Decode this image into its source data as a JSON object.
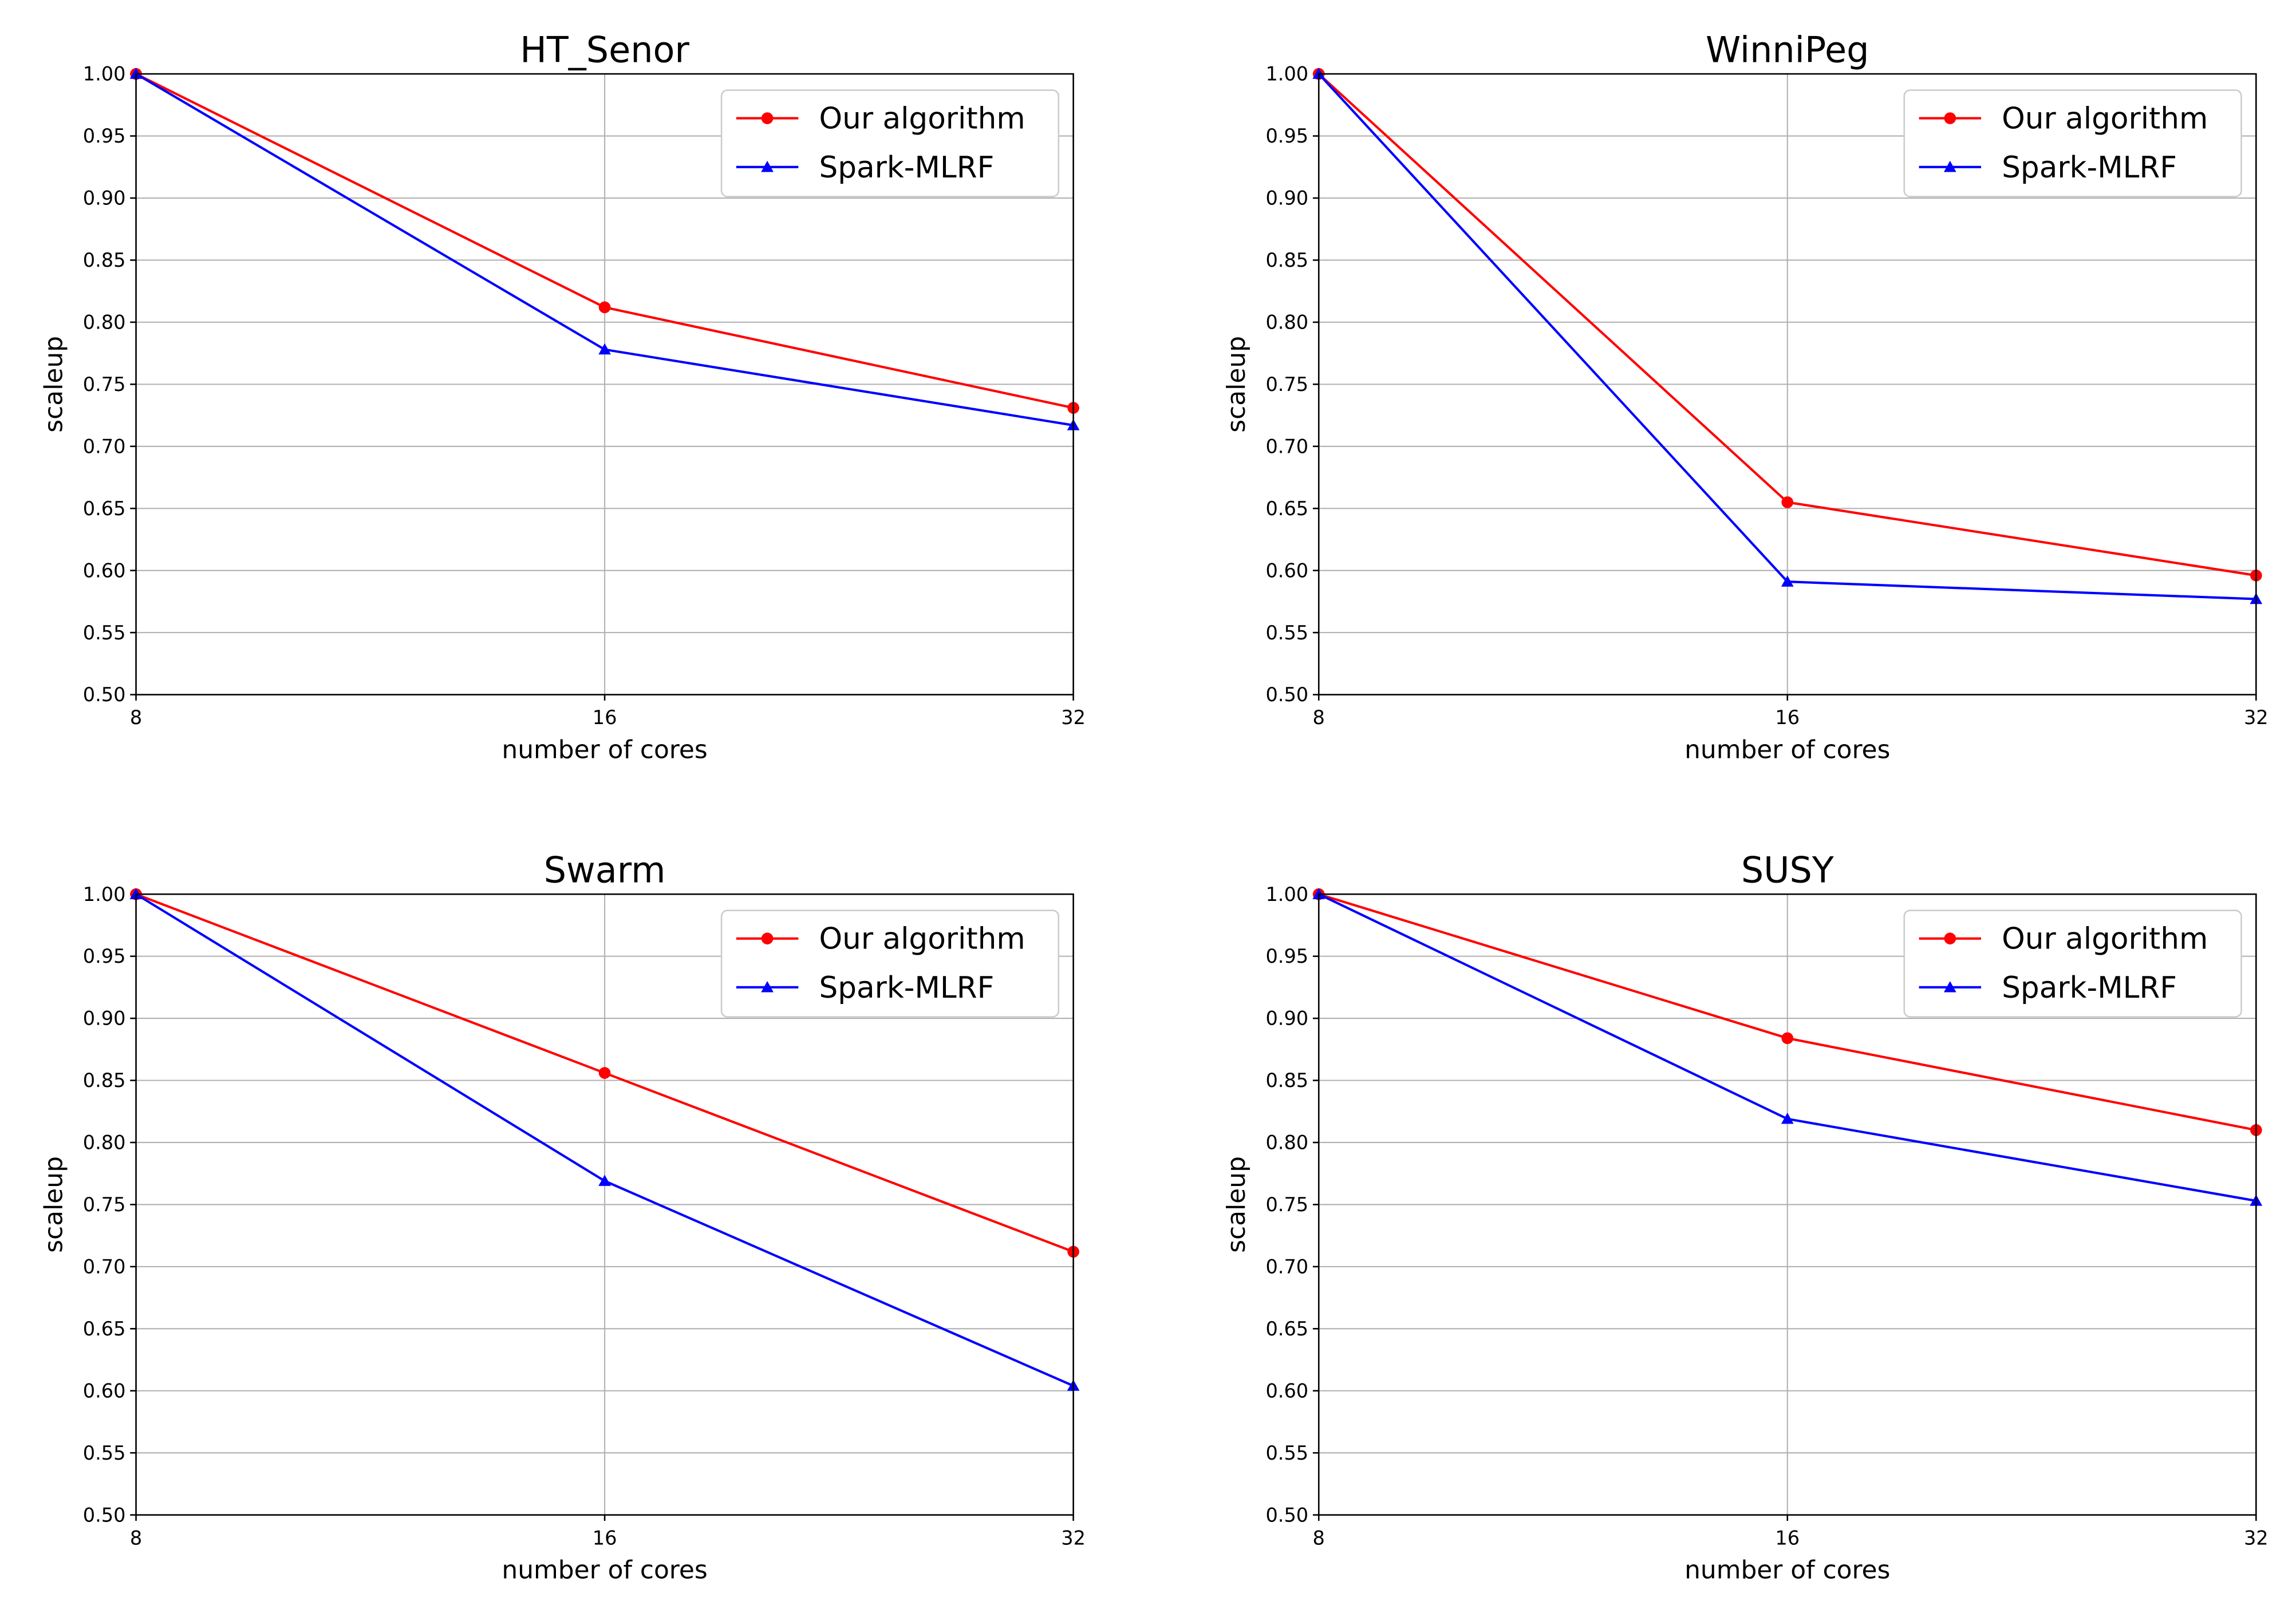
{
  "chart_data": [
    {
      "type": "line",
      "title": "HT_Senor",
      "xlabel": "number of cores",
      "ylabel": "scaleup",
      "x": [
        8,
        16,
        32
      ],
      "xticks": [
        "8",
        "16",
        "32"
      ],
      "ylim": [
        0.5,
        1.0
      ],
      "yticks": [
        "0.50",
        "0.55",
        "0.60",
        "0.65",
        "0.70",
        "0.75",
        "0.80",
        "0.85",
        "0.90",
        "0.95",
        "1.00"
      ],
      "grid": true,
      "legend_position": "top-right",
      "series": [
        {
          "name": "Our algorithm",
          "marker": "circle",
          "color": "#ff0000",
          "values": [
            1.0,
            0.812,
            0.731
          ]
        },
        {
          "name": "Spark-MLRF",
          "marker": "triangle",
          "color": "#0000ff",
          "values": [
            1.0,
            0.778,
            0.717
          ]
        }
      ]
    },
    {
      "type": "line",
      "title": "WinniPeg",
      "xlabel": "number of cores",
      "ylabel": "scaleup",
      "x": [
        8,
        16,
        32
      ],
      "xticks": [
        "8",
        "16",
        "32"
      ],
      "ylim": [
        0.5,
        1.0
      ],
      "yticks": [
        "0.50",
        "0.55",
        "0.60",
        "0.65",
        "0.70",
        "0.75",
        "0.80",
        "0.85",
        "0.90",
        "0.95",
        "1.00"
      ],
      "grid": true,
      "legend_position": "top-right",
      "series": [
        {
          "name": "Our algorithm",
          "marker": "circle",
          "color": "#ff0000",
          "values": [
            1.0,
            0.655,
            0.596
          ]
        },
        {
          "name": "Spark-MLRF",
          "marker": "triangle",
          "color": "#0000ff",
          "values": [
            1.0,
            0.591,
            0.577
          ]
        }
      ]
    },
    {
      "type": "line",
      "title": "Swarm",
      "xlabel": "number of cores",
      "ylabel": "scaleup",
      "x": [
        8,
        16,
        32
      ],
      "xticks": [
        "8",
        "16",
        "32"
      ],
      "ylim": [
        0.5,
        1.0
      ],
      "yticks": [
        "0.50",
        "0.55",
        "0.60",
        "0.65",
        "0.70",
        "0.75",
        "0.80",
        "0.85",
        "0.90",
        "0.95",
        "1.00"
      ],
      "grid": true,
      "legend_position": "top-right",
      "series": [
        {
          "name": "Our algorithm",
          "marker": "circle",
          "color": "#ff0000",
          "values": [
            1.0,
            0.856,
            0.712
          ]
        },
        {
          "name": "Spark-MLRF",
          "marker": "triangle",
          "color": "#0000ff",
          "values": [
            1.0,
            0.769,
            0.604
          ]
        }
      ]
    },
    {
      "type": "line",
      "title": "SUSY",
      "xlabel": "number of cores",
      "ylabel": "scaleup",
      "x": [
        8,
        16,
        32
      ],
      "xticks": [
        "8",
        "16",
        "32"
      ],
      "ylim": [
        0.5,
        1.0
      ],
      "yticks": [
        "0.50",
        "0.55",
        "0.60",
        "0.65",
        "0.70",
        "0.75",
        "0.80",
        "0.85",
        "0.90",
        "0.95",
        "1.00"
      ],
      "grid": true,
      "legend_position": "top-right",
      "series": [
        {
          "name": "Our algorithm",
          "marker": "circle",
          "color": "#ff0000",
          "values": [
            1.0,
            0.884,
            0.81
          ]
        },
        {
          "name": "Spark-MLRF",
          "marker": "triangle",
          "color": "#0000ff",
          "values": [
            1.0,
            0.819,
            0.753
          ]
        }
      ]
    }
  ]
}
